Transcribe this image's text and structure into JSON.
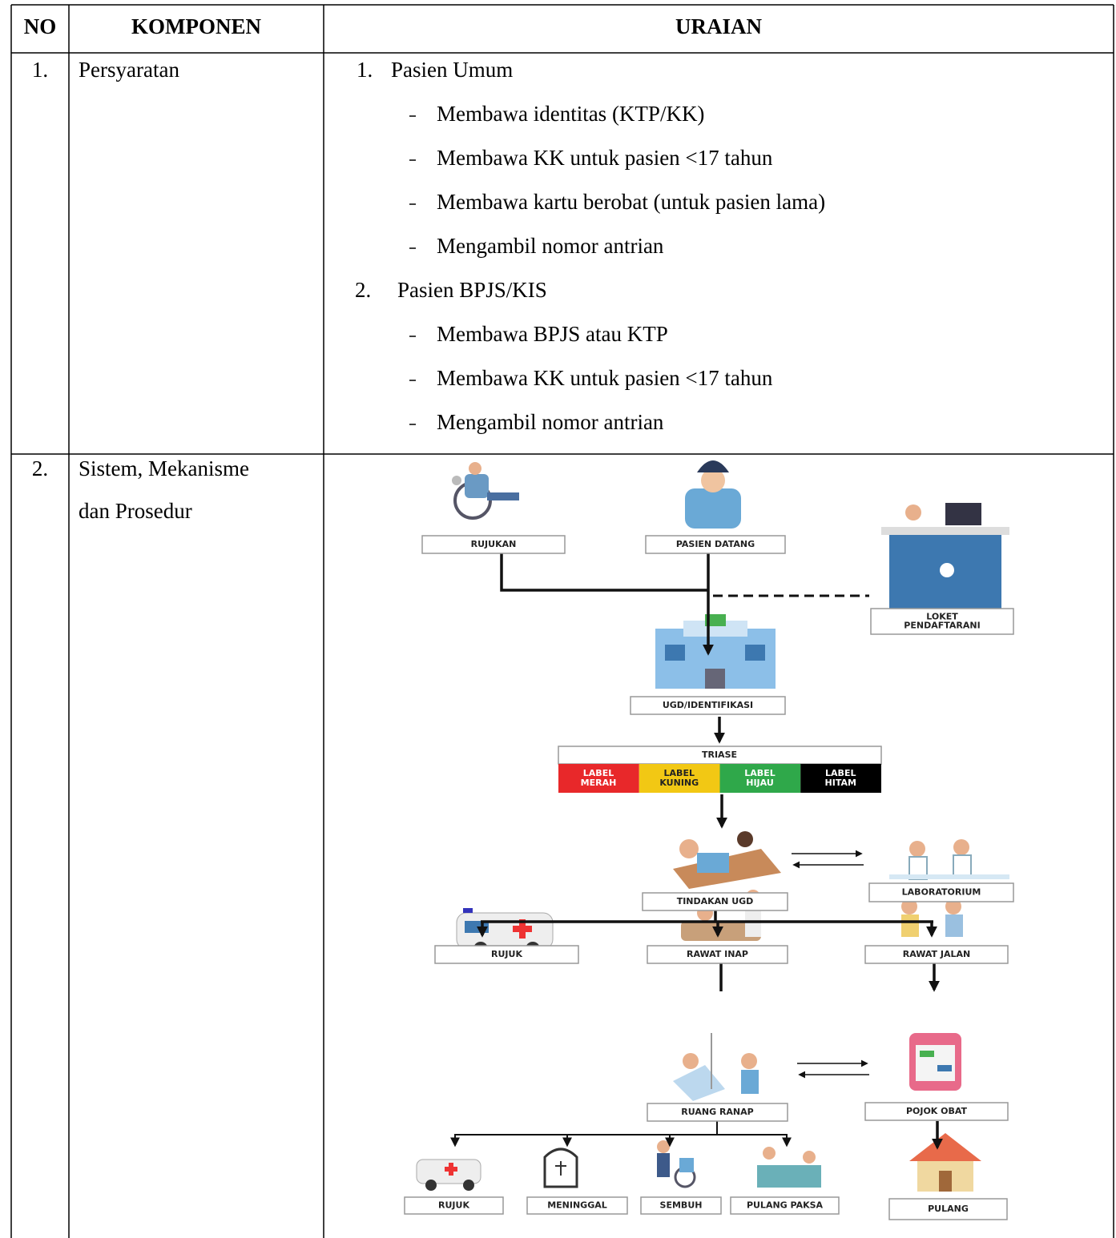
{
  "table": {
    "headers": [
      "NO",
      "KOMPONEN",
      "URAIAN"
    ],
    "rows": [
      {
        "no": "1.",
        "komponen": [
          "Persyaratan"
        ],
        "uraian": [
          {
            "number": "1.",
            "title": "Pasien Umum",
            "items": [
              "Membawa identitas (KTP/KK)",
              "Membawa KK untuk pasien <17 tahun",
              "Membawa kartu berobat (untuk pasien lama)",
              "Mengambil nomor antrian"
            ]
          },
          {
            "number": "2.",
            "title": "Pasien BPJS/KIS",
            "items": [
              "Membawa BPJS atau KTP",
              "Membawa KK untuk pasien <17 tahun",
              "Mengambil nomor antrian"
            ]
          }
        ]
      },
      {
        "no": "2.",
        "komponen": [
          "Sistem, Mekanisme",
          "dan Prosedur"
        ]
      }
    ]
  },
  "diagram": {
    "nodes": [
      {
        "lines": [
          "RUJUKAN"
        ]
      },
      {
        "lines": [
          "PASIEN DATANG"
        ]
      },
      {
        "lines": [
          "LOKET",
          "PENDAFTARANI"
        ]
      },
      {
        "lines": [
          "UGD/IDENTIFIKASI"
        ]
      },
      {
        "lines": [
          "TINDAKAN UGD"
        ]
      },
      {
        "lines": [
          "LABORATORIUM"
        ]
      },
      {
        "lines": [
          "RUJUK"
        ]
      },
      {
        "lines": [
          "RAWAT INAP"
        ]
      },
      {
        "lines": [
          "RAWAT JALAN"
        ]
      },
      {
        "lines": [
          "RUANG RANAP"
        ]
      },
      {
        "lines": [
          "POJOK OBAT"
        ]
      },
      {
        "lines": [
          "RUJUK"
        ]
      },
      {
        "lines": [
          "MENINGGAL"
        ]
      },
      {
        "lines": [
          "SEMBUH"
        ]
      },
      {
        "lines": [
          "PULANG PAKSA"
        ]
      },
      {
        "lines": [
          "PULANG"
        ]
      }
    ],
    "triase": {
      "title": "TRIASE",
      "labels": [
        [
          "LABEL",
          "MERAH"
        ],
        [
          "LABEL",
          "KUNING"
        ],
        [
          "LABEL",
          "HIJAU"
        ],
        [
          "LABEL",
          "HITAM"
        ]
      ]
    }
  }
}
